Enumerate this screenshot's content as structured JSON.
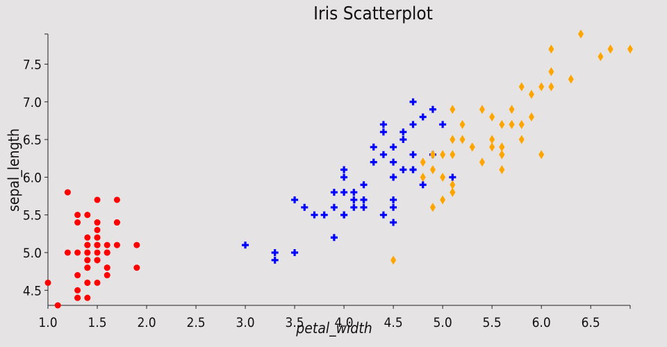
{
  "chart_data": {
    "type": "scatter",
    "title": "Iris Scatterplot",
    "xlabel": "petal_width",
    "ylabel": "sepal_length",
    "xlim": [
      1.0,
      6.9
    ],
    "ylim": [
      4.3,
      7.9
    ],
    "xticks": [
      "1.0",
      "1.5",
      "2.0",
      "2.5",
      "3.0",
      "3.5",
      "4.0",
      "4.5",
      "5.0",
      "5.5",
      "6.0",
      "6.5"
    ],
    "yticks": [
      "4.5",
      "5.0",
      "5.5",
      "6.0",
      "6.5",
      "7.0",
      "7.5"
    ],
    "grid": false,
    "legend": "none",
    "series": [
      {
        "marker": "circle",
        "color": "#ff0000",
        "points": [
          [
            1.4,
            5.1
          ],
          [
            1.4,
            4.9
          ],
          [
            1.3,
            4.7
          ],
          [
            1.5,
            4.6
          ],
          [
            1.4,
            5.0
          ],
          [
            1.7,
            5.4
          ],
          [
            1.4,
            4.6
          ],
          [
            1.5,
            5.0
          ],
          [
            1.4,
            4.4
          ],
          [
            1.5,
            4.9
          ],
          [
            1.5,
            5.4
          ],
          [
            1.6,
            4.8
          ],
          [
            1.4,
            4.8
          ],
          [
            1.1,
            4.3
          ],
          [
            1.2,
            5.8
          ],
          [
            1.5,
            5.7
          ],
          [
            1.3,
            5.4
          ],
          [
            1.4,
            5.1
          ],
          [
            1.7,
            5.7
          ],
          [
            1.5,
            5.1
          ],
          [
            1.7,
            5.4
          ],
          [
            1.5,
            5.1
          ],
          [
            1.0,
            4.6
          ],
          [
            1.7,
            5.1
          ],
          [
            1.9,
            4.8
          ],
          [
            1.6,
            5.0
          ],
          [
            1.6,
            5.0
          ],
          [
            1.5,
            5.2
          ],
          [
            1.4,
            5.2
          ],
          [
            1.6,
            4.7
          ],
          [
            1.6,
            4.8
          ],
          [
            1.5,
            5.4
          ],
          [
            1.5,
            5.2
          ],
          [
            1.4,
            5.5
          ],
          [
            1.5,
            4.9
          ],
          [
            1.2,
            5.0
          ],
          [
            1.3,
            5.5
          ],
          [
            1.4,
            4.9
          ],
          [
            1.3,
            4.4
          ],
          [
            1.5,
            5.1
          ],
          [
            1.3,
            5.0
          ],
          [
            1.3,
            4.5
          ],
          [
            1.3,
            4.4
          ],
          [
            1.6,
            5.0
          ],
          [
            1.9,
            5.1
          ],
          [
            1.4,
            4.8
          ],
          [
            1.6,
            5.1
          ],
          [
            1.4,
            4.6
          ],
          [
            1.5,
            5.3
          ],
          [
            1.4,
            5.0
          ]
        ]
      },
      {
        "marker": "plus",
        "color": "#0000ff",
        "points": [
          [
            4.7,
            7.0
          ],
          [
            4.5,
            6.4
          ],
          [
            4.9,
            6.9
          ],
          [
            4.0,
            5.5
          ],
          [
            4.6,
            6.5
          ],
          [
            4.5,
            5.7
          ],
          [
            4.7,
            6.3
          ],
          [
            3.3,
            4.9
          ],
          [
            4.6,
            6.6
          ],
          [
            3.9,
            5.2
          ],
          [
            3.5,
            5.0
          ],
          [
            4.2,
            5.9
          ],
          [
            4.0,
            6.0
          ],
          [
            4.7,
            6.1
          ],
          [
            3.6,
            5.6
          ],
          [
            4.4,
            6.7
          ],
          [
            4.5,
            5.6
          ],
          [
            4.1,
            5.8
          ],
          [
            4.5,
            6.2
          ],
          [
            3.9,
            5.6
          ],
          [
            4.8,
            5.9
          ],
          [
            4.0,
            6.1
          ],
          [
            4.9,
            6.3
          ],
          [
            4.7,
            6.1
          ],
          [
            4.3,
            6.4
          ],
          [
            4.4,
            6.6
          ],
          [
            4.8,
            6.8
          ],
          [
            5.0,
            6.7
          ],
          [
            4.5,
            6.0
          ],
          [
            3.5,
            5.7
          ],
          [
            3.8,
            5.5
          ],
          [
            3.7,
            5.5
          ],
          [
            3.9,
            5.8
          ],
          [
            5.1,
            6.0
          ],
          [
            4.5,
            5.4
          ],
          [
            4.5,
            6.0
          ],
          [
            4.7,
            6.7
          ],
          [
            4.4,
            6.3
          ],
          [
            4.1,
            5.6
          ],
          [
            4.0,
            5.5
          ],
          [
            4.4,
            5.5
          ],
          [
            4.6,
            6.1
          ],
          [
            4.0,
            5.8
          ],
          [
            3.3,
            5.0
          ],
          [
            4.2,
            5.6
          ],
          [
            4.2,
            5.7
          ],
          [
            4.2,
            5.7
          ],
          [
            4.3,
            6.2
          ],
          [
            3.0,
            5.1
          ],
          [
            4.1,
            5.7
          ]
        ]
      },
      {
        "marker": "diamond",
        "color": "#ffa500",
        "points": [
          [
            6.0,
            6.3
          ],
          [
            5.1,
            5.8
          ],
          [
            5.9,
            7.1
          ],
          [
            5.6,
            6.3
          ],
          [
            5.8,
            6.5
          ],
          [
            6.6,
            7.6
          ],
          [
            4.5,
            4.9
          ],
          [
            6.3,
            7.3
          ],
          [
            5.8,
            6.7
          ],
          [
            6.1,
            7.2
          ],
          [
            5.1,
            6.5
          ],
          [
            5.3,
            6.4
          ],
          [
            5.5,
            6.8
          ],
          [
            5.0,
            5.7
          ],
          [
            5.1,
            5.8
          ],
          [
            5.3,
            6.4
          ],
          [
            5.5,
            6.5
          ],
          [
            6.7,
            7.7
          ],
          [
            6.9,
            7.7
          ],
          [
            5.0,
            6.0
          ],
          [
            5.7,
            6.9
          ],
          [
            4.9,
            5.6
          ],
          [
            6.7,
            7.7
          ],
          [
            4.9,
            6.3
          ],
          [
            5.7,
            6.7
          ],
          [
            6.0,
            7.2
          ],
          [
            4.8,
            6.2
          ],
          [
            4.9,
            6.1
          ],
          [
            5.6,
            6.4
          ],
          [
            5.8,
            7.2
          ],
          [
            6.1,
            7.4
          ],
          [
            6.4,
            7.9
          ],
          [
            5.6,
            6.4
          ],
          [
            5.1,
            6.3
          ],
          [
            5.6,
            6.1
          ],
          [
            6.1,
            7.7
          ],
          [
            5.6,
            6.3
          ],
          [
            5.5,
            6.4
          ],
          [
            4.8,
            6.0
          ],
          [
            5.4,
            6.9
          ],
          [
            5.6,
            6.7
          ],
          [
            5.1,
            6.9
          ],
          [
            5.1,
            5.8
          ],
          [
            5.9,
            6.8
          ],
          [
            5.7,
            6.7
          ],
          [
            5.2,
            6.7
          ],
          [
            5.0,
            6.3
          ],
          [
            5.2,
            6.5
          ],
          [
            5.4,
            6.2
          ],
          [
            5.1,
            5.9
          ]
        ]
      }
    ]
  }
}
